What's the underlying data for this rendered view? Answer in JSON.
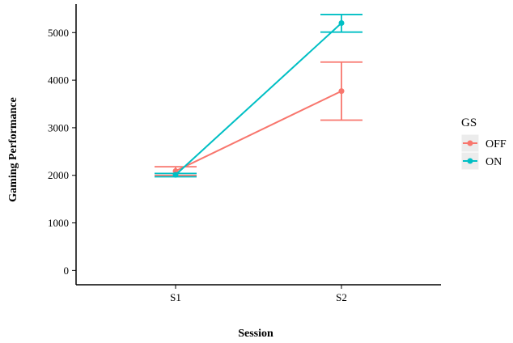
{
  "chart_data": {
    "type": "line",
    "title": "",
    "xlabel": "Session",
    "ylabel": "Gaming Performance",
    "categories": [
      "S1",
      "S2"
    ],
    "ylim": [
      -300,
      5600
    ],
    "yticks": [
      0,
      1000,
      2000,
      3000,
      4000,
      5000
    ],
    "ytick_labels": [
      "0",
      "1000",
      "2000",
      "3000",
      "4000",
      "5000"
    ],
    "grid": false,
    "error_bars": true,
    "legend": {
      "title": "GS",
      "position": "right",
      "entries": [
        "OFF",
        "ON"
      ]
    },
    "series": [
      {
        "name": "OFF",
        "color": "#F8766D",
        "values": [
          2090,
          3770
        ],
        "error_low": [
          2000,
          3160
        ],
        "error_high": [
          2180,
          4380
        ]
      },
      {
        "name": "ON",
        "color": "#00BFC4",
        "values": [
          2010,
          5200
        ],
        "error_low": [
          1970,
          5010
        ],
        "error_high": [
          2040,
          5380
        ]
      }
    ]
  }
}
